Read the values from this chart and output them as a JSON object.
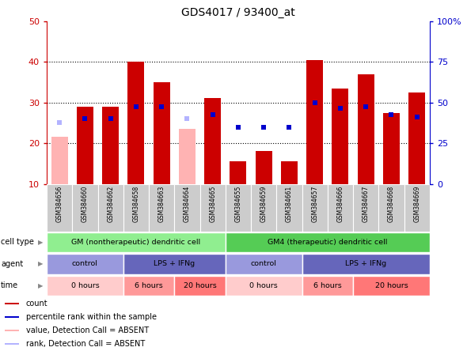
{
  "title": "GDS4017 / 93400_at",
  "samples": [
    "GSM384656",
    "GSM384660",
    "GSM384662",
    "GSM384658",
    "GSM384663",
    "GSM384664",
    "GSM384665",
    "GSM384655",
    "GSM384659",
    "GSM384661",
    "GSM384657",
    "GSM384666",
    "GSM384667",
    "GSM384668",
    "GSM384669"
  ],
  "count_values": [
    21.5,
    29.0,
    29.0,
    40.0,
    35.0,
    23.5,
    31.0,
    15.5,
    18.0,
    15.5,
    40.5,
    33.5,
    37.0,
    27.5,
    32.5
  ],
  "rank_values": [
    25.0,
    26.0,
    26.0,
    29.0,
    29.0,
    26.0,
    27.0,
    24.0,
    24.0,
    24.0,
    30.0,
    28.5,
    29.0,
    27.0,
    26.5
  ],
  "absent_count": [
    true,
    false,
    false,
    false,
    false,
    true,
    false,
    false,
    false,
    false,
    false,
    false,
    false,
    false,
    false
  ],
  "absent_rank": [
    true,
    false,
    false,
    false,
    false,
    true,
    false,
    false,
    false,
    false,
    false,
    false,
    false,
    false,
    false
  ],
  "ylim_left": [
    10,
    50
  ],
  "ylim_right": [
    0,
    100
  ],
  "yticks_left": [
    10,
    20,
    30,
    40,
    50
  ],
  "yticks_right": [
    0,
    25,
    50,
    75,
    100
  ],
  "yticklabels_right": [
    "0",
    "25",
    "50",
    "75",
    "100%"
  ],
  "bar_color_present": "#cc0000",
  "bar_color_absent": "#ffb3b3",
  "rank_color_present": "#0000cc",
  "rank_color_absent": "#b3b3ff",
  "cell_type_groups": [
    {
      "label": "GM (nontherapeutic) dendritic cell",
      "start": 0,
      "end": 7,
      "color": "#90ee90"
    },
    {
      "label": "GM4 (therapeutic) dendritic cell",
      "start": 7,
      "end": 15,
      "color": "#55cc55"
    }
  ],
  "agent_groups": [
    {
      "label": "control",
      "start": 0,
      "end": 3,
      "color": "#9999dd"
    },
    {
      "label": "LPS + IFNg",
      "start": 3,
      "end": 7,
      "color": "#6666bb"
    },
    {
      "label": "control",
      "start": 7,
      "end": 10,
      "color": "#9999dd"
    },
    {
      "label": "LPS + IFNg",
      "start": 10,
      "end": 15,
      "color": "#6666bb"
    }
  ],
  "time_groups": [
    {
      "label": "0 hours",
      "start": 0,
      "end": 3,
      "color": "#ffcccc"
    },
    {
      "label": "6 hours",
      "start": 3,
      "end": 5,
      "color": "#ff9999"
    },
    {
      "label": "20 hours",
      "start": 5,
      "end": 7,
      "color": "#ff7777"
    },
    {
      "label": "0 hours",
      "start": 7,
      "end": 10,
      "color": "#ffcccc"
    },
    {
      "label": "6 hours",
      "start": 10,
      "end": 12,
      "color": "#ff9999"
    },
    {
      "label": "20 hours",
      "start": 12,
      "end": 15,
      "color": "#ff7777"
    }
  ],
  "legend_items": [
    {
      "label": "count",
      "color": "#cc0000"
    },
    {
      "label": "percentile rank within the sample",
      "color": "#0000cc"
    },
    {
      "label": "value, Detection Call = ABSENT",
      "color": "#ffb3b3"
    },
    {
      "label": "rank, Detection Call = ABSENT",
      "color": "#b3b3ff"
    }
  ],
  "row_labels": [
    "cell type",
    "agent",
    "time"
  ],
  "bar_width": 0.65,
  "background_color": "#ffffff",
  "left_axis_color": "#cc0000",
  "right_axis_color": "#0000cc",
  "tick_bg_color": "#cccccc"
}
